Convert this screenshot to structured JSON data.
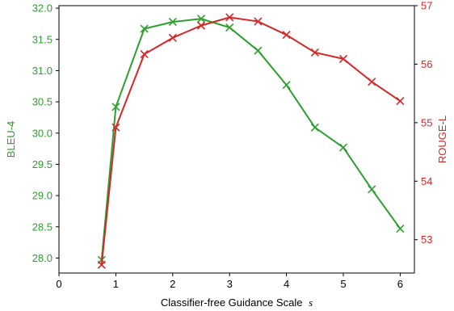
{
  "chart_data": {
    "type": "line",
    "title": "",
    "xlabel": "Classifier-free Guidance Scale",
    "xlabel_var": "s",
    "xlim": [
      0,
      6.25
    ],
    "xticks": [
      0,
      1,
      2,
      3,
      4,
      5,
      6
    ],
    "grid": false,
    "legend": "none",
    "series": [
      {
        "name": "BLEU-4",
        "axis": "left",
        "color": "#2ca02c",
        "marker": "x",
        "x": [
          0.75,
          1.0,
          1.5,
          2.0,
          2.5,
          3.0,
          3.5,
          4.0,
          4.5,
          5.0,
          5.5,
          6.0
        ],
        "values": [
          27.97,
          30.42,
          31.67,
          31.78,
          31.83,
          31.69,
          31.32,
          30.77,
          30.09,
          29.77,
          29.1,
          28.47
        ]
      },
      {
        "name": "ROUGE-L",
        "axis": "right",
        "color": "#d62728",
        "marker": "x",
        "x": [
          0.75,
          1.0,
          1.5,
          2.0,
          2.5,
          3.0,
          3.5,
          4.0,
          4.5,
          5.0,
          5.5,
          6.0
        ],
        "values": [
          52.57,
          54.92,
          56.17,
          56.45,
          56.66,
          56.8,
          56.73,
          56.5,
          56.2,
          56.09,
          55.7,
          55.37
        ]
      }
    ],
    "y_left": {
      "label": "BLEU-4",
      "color": "#2ca02c",
      "ylim": [
        27.76,
        32.04
      ],
      "ticks": [
        28.0,
        28.5,
        29.0,
        29.5,
        30.0,
        30.5,
        31.0,
        31.5,
        32.0
      ],
      "tick_labels": [
        "28.0",
        "28.5",
        "29.0",
        "29.5",
        "30.0",
        "30.5",
        "31.0",
        "31.5",
        "32.0"
      ]
    },
    "y_right": {
      "label": "ROUGE-L",
      "color": "#d62728",
      "ylim": [
        52.43,
        57.0
      ],
      "ticks": [
        53,
        54,
        55,
        56,
        57
      ],
      "tick_labels": [
        "53",
        "54",
        "55",
        "56",
        "57"
      ]
    }
  }
}
